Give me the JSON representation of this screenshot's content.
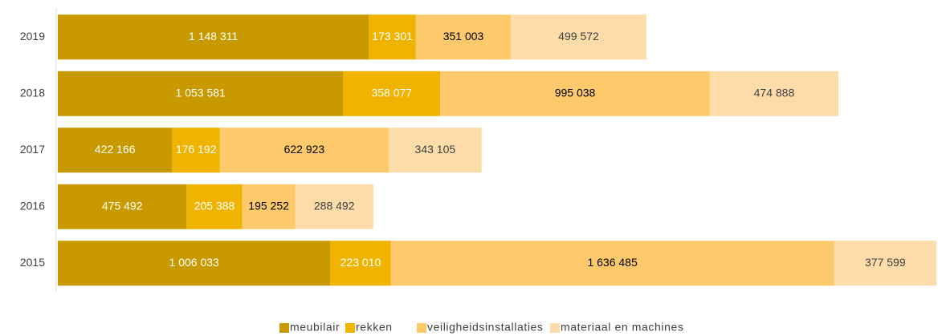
{
  "chart_data": {
    "type": "stacked-barh",
    "categories": [
      "2019",
      "2018",
      "2017",
      "2016",
      "2015"
    ],
    "series": [
      {
        "name": "meubilair",
        "color": "#c89a00",
        "values": [
          1148311,
          1053581,
          422166,
          475492,
          1006033
        ],
        "value_labels": [
          "1 148 311",
          "1 053 581",
          "422 166",
          "475 492",
          "1 006 033"
        ]
      },
      {
        "name": "rekken",
        "color": "#f0b400",
        "values": [
          173301,
          358077,
          176192,
          205388,
          223010
        ],
        "value_labels": [
          "173 301",
          "358 077",
          "176 192",
          "205 388",
          "223 010"
        ]
      },
      {
        "name": "veiligheidsinstallaties",
        "color": "#fdc96a",
        "values": [
          351003,
          995038,
          622923,
          195252,
          1636485
        ],
        "value_labels": [
          "351 003",
          "995 038",
          "622 923",
          "195 252",
          "1 636 485"
        ]
      },
      {
        "name": "materiaal en machines",
        "color": "#fddcaa",
        "values": [
          499572,
          474888,
          343105,
          288492,
          377599
        ],
        "value_labels": [
          "499 572",
          "474 888",
          "343 105",
          "288 492",
          "377 599"
        ]
      }
    ],
    "legend": "bottom"
  }
}
